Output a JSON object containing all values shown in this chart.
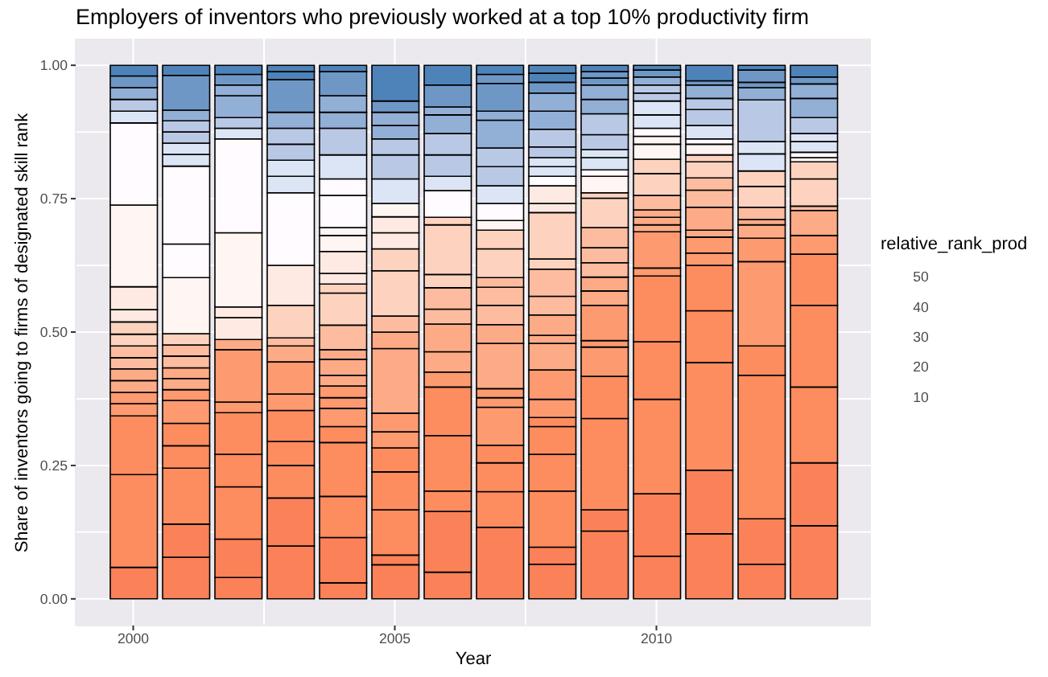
{
  "chart_data": {
    "type": "bar",
    "title": "Employers of inventors who previously worked at a top 10% productivity firm",
    "xlabel": "Year",
    "ylabel": "Share of inventors going to firms of designated skill rank",
    "legend_title": "relative_rank_prod",
    "annotations": [
      "50",
      "40",
      "30",
      "20",
      "10"
    ],
    "stacked": true,
    "grid": true,
    "x": [
      2000,
      2001,
      2002,
      2003,
      2004,
      2005,
      2006,
      2007,
      2008,
      2009,
      2010,
      2011,
      2012,
      2013
    ],
    "xlim": [
      1998.9,
      2014.1
    ],
    "xticks": [
      2000,
      2005,
      2010
    ],
    "ylim": [
      -0.05,
      1.05
    ],
    "yticks": [
      {
        "value": 0,
        "label": "0.00"
      },
      {
        "value": 0.25,
        "label": "0.25"
      },
      {
        "value": 0.5,
        "label": "0.50"
      },
      {
        "value": 0.75,
        "label": "0.75"
      },
      {
        "value": 1,
        "label": "1.00"
      }
    ],
    "series": [
      {
        "values": [
          0.059,
          0.078,
          0.04,
          0.099,
          0.03,
          0.064,
          0.05,
          0.134,
          0.065,
          0.127,
          0.08,
          0.122,
          0.065,
          0.137
        ],
        "colors": [
          "#fb8158",
          "#fb8158",
          "#fb8158",
          "#fb8158",
          "#fb8158",
          "#fb8158",
          "#fb8158",
          "#fb8158",
          "#fb8158",
          "#fb8158",
          "#fb8158",
          "#fb8158",
          "#fb8158",
          "#fb8158"
        ]
      },
      {
        "values": [
          0.174,
          0.062,
          0.072,
          0.09,
          0.085,
          0.018,
          0.114,
          0.067,
          0.032,
          0.04,
          0.117,
          0.119,
          0.085,
          0.118
        ],
        "colors": [
          "#fd8c5f",
          "#fb8158",
          "#fb8158",
          "#fb8158",
          "#fb8158",
          "#fb8158",
          "#fb8158",
          "#fd8c5f",
          "#fb8158",
          "#fb8158",
          "#fb8158",
          "#fb8158",
          "#fb8158",
          "#fb8158"
        ]
      },
      {
        "values": [
          0.11,
          0.105,
          0.098,
          0.061,
          0.077,
          0.085,
          0.038,
          0.054,
          0.105,
          0.171,
          0.177,
          0.202,
          0.269,
          0.142
        ],
        "colors": [
          "#fd8c5f",
          "#fd8c5f",
          "#fd8c5f",
          "#fd8c5f",
          "#fd8c5f",
          "#fd8c5f",
          "#fd8c5f",
          "#fd8c5f",
          "#fd8c5f",
          "#fd8c5f",
          "#fd8c5f",
          "#fd8c5f",
          "#fd8c5f",
          "#fd8c5f"
        ]
      },
      {
        "values": [
          0.023,
          0.042,
          0.061,
          0.045,
          0.101,
          0.071,
          0.104,
          0.033,
          0.069,
          0.079,
          0.108,
          0.097,
          0.055,
          0.153
        ],
        "colors": [
          "#fd9a70",
          "#fd8c5f",
          "#fd8c5f",
          "#fd8c5f",
          "#fd8c5f",
          "#fd8c5f",
          "#fd8c5f",
          "#fd8c5f",
          "#fd8c5f",
          "#fd8c5f",
          "#fd8c5f",
          "#fd8c5f",
          "#fd8c5f",
          "#fd8c5f"
        ]
      },
      {
        "values": [
          0.021,
          0.042,
          0.078,
          0.058,
          0.03,
          0.045,
          0.091,
          0.071,
          0.052,
          0.055,
          0.123,
          0.085,
          0.158,
          0.096
        ],
        "colors": [
          "#fd9a70",
          "#fd8c5f",
          "#fd8c5f",
          "#fd8c5f",
          "#fd8c5f",
          "#fd8c5f",
          "#fd8c5f",
          "#fd9a70",
          "#fd8c5f",
          "#fd9a70",
          "#fd8c5f",
          "#fd8c5f",
          "#fd9a70",
          "#fd8c5f"
        ]
      },
      {
        "values": [
          0.022,
          0.043,
          0.02,
          0.031,
          0.034,
          0.03,
          0.028,
          0.018,
          0.017,
          0.012,
          0.015,
          0.023,
          0.044,
          0.035
        ],
        "colors": [
          "#fdab86",
          "#fd9a70",
          "#fd9a70",
          "#fd9a70",
          "#fd9a70",
          "#fd9a70",
          "#fd9a70",
          "#fd9a70",
          "#fd8c5f",
          "#fd9a70",
          "#fd9a70",
          "#fd9a70",
          "#fd9a70",
          "#fd9a70"
        ]
      },
      {
        "values": [
          0.022,
          0.02,
          0.098,
          0.06,
          0.02,
          0.035,
          0.038,
          0.017,
          0.034,
          0.066,
          0.068,
          0.03,
          0.025,
          0.047
        ],
        "colors": [
          "#fdab86",
          "#fd9a70",
          "#fd9a70",
          "#fd9a70",
          "#fd9a70",
          "#fd9a70",
          "#fdab86",
          "#fd9a70",
          "#fd9a70",
          "#fd9a70",
          "#fd9a70",
          "#fd9a70",
          "#fdab86",
          "#fdab86"
        ]
      },
      {
        "values": [
          0.021,
          0.021,
          0.019,
          0.03,
          0.022,
          0.121,
          0.052,
          0.085,
          0.055,
          0.027,
          0.013,
          0.013,
          0.01,
          0.008
        ],
        "colors": [
          "#fdbc9f",
          "#fdab86",
          "#fdab86",
          "#fdab86",
          "#fd9a70",
          "#fdab86",
          "#fdab86",
          "#fdab86",
          "#fd9a70",
          "#fdab86",
          "#fdab86",
          "#fdab86",
          "#fdab86",
          "#fdbc9f"
        ]
      },
      {
        "values": [
          0.022,
          0.02,
          0.041,
          0.015,
          0.02,
          0.031,
          0.028,
          0.035,
          0.05,
          0.026,
          0.014,
          0.043,
          0.023,
          0.051
        ],
        "colors": [
          "#fdbc9f",
          "#fdab86",
          "#feeae2",
          "#fdbc9f",
          "#fdab86",
          "#fdab86",
          "#fdbc9f",
          "#fdab86",
          "#fdab86",
          "#fdab86",
          "#fdab86",
          "#fdab86",
          "#fdbc9f",
          "#fdd3bf"
        ]
      },
      {
        "values": [
          0.022,
          0.022,
          0.02,
          0.061,
          0.03,
          0.03,
          0.04,
          0.036,
          0.015,
          0.027,
          0.014,
          0.032,
          0.039,
          0.032
        ],
        "colors": [
          "#fdd3bf",
          "#fdbc9f",
          "#feeae2",
          "#fdd3bf",
          "#fdab86",
          "#fdbc9f",
          "#fdbc9f",
          "#fdbc9f",
          "#fdab86",
          "#fdbc9f",
          "#fdab86",
          "#fdbc9f",
          "#fdd3bf",
          "#fdd3bf"
        ]
      },
      {
        "values": [
          0.023,
          0.021,
          0.139,
          0.075,
          0.018,
          0.085,
          0.025,
          0.034,
          0.038,
          0.028,
          0.027,
          0.023,
          0.029,
          0.008
        ],
        "colors": [
          "#fdd3bf",
          "#fdbc9f",
          "#fff5f2",
          "#feeae2",
          "#fdab86",
          "#fdd3bf",
          "#fdd3bf",
          "#fdbc9f",
          "#fdab86",
          "#fdbc9f",
          "#fdbc9f",
          "#fdbc9f",
          "#fdd3bf",
          "#fff5f2"
        ]
      },
      {
        "values": [
          0.023,
          0.021,
          0.176,
          0.136,
          0.046,
          0.041,
          0.093,
          0.018,
          0.035,
          0.038,
          0.041,
          0.03,
          0.032,
          0.01
        ],
        "colors": [
          "#feeae2",
          "#fdd3bf",
          "#fffbff",
          "#fffbff",
          "#fdbc9f",
          "#fdd3bf",
          "#fdd3bf",
          "#fdbc9f",
          "#fdbc9f",
          "#fdbc9f",
          "#fdd3bf",
          "#fdd3bf",
          "#dbe5f5",
          "#fffbff"
        ]
      },
      {
        "values": [
          0.043,
          0.105,
          0.02,
          0.031,
          0.06,
          0.03,
          0.014,
          0.054,
          0.051,
          0.055,
          0.027,
          0.013,
          0.023,
          0.02
        ],
        "colors": [
          "#feeae2",
          "#fff5f2",
          "#dbe5f5",
          "#dbe5f5",
          "#fdd3bf",
          "#feeae2",
          "#fdd3bf",
          "#fdd3bf",
          "#fdbc9f",
          "#fdd3bf",
          "#fdd3bf",
          "#fdd3bf",
          "#dbe5f5",
          "#dbe5f5"
        ]
      },
      {
        "values": [
          0.153,
          0.063,
          0.02,
          0.03,
          0.017,
          0.03,
          0.05,
          0.035,
          0.019,
          0.01,
          0.028,
          0.02,
          0.078,
          0.015
        ],
        "colors": [
          "#fff5f2",
          "#fffbff",
          "#b9c9e5",
          "#dbe5f5",
          "#fdd3bf",
          "#feeae2",
          "#fffbff",
          "#fdd3bf",
          "#fdd3bf",
          "#fdd3bf",
          "#fff5f2",
          "#fff5f2",
          "#b9c9e5",
          "#dbe5f5"
        ]
      },
      {
        "values": [
          0.154,
          0.146,
          0.041,
          0.03,
          0.02,
          0.025,
          0.027,
          0.018,
          0.087,
          0.031,
          0.015,
          0.01,
          0.023,
          0.03
        ],
        "colors": [
          "#fffbff",
          "#fffbff",
          "#92afd6",
          "#b9c9e5",
          "#feeae2",
          "#fff5f2",
          "#dbe5f5",
          "#fff5f2",
          "#fdd3bf",
          "#fff5f2",
          "#fff5f2",
          "#fffbff",
          "#92afd6",
          "#b9c9e5"
        ]
      },
      {
        "values": [
          0.022,
          0.022,
          0.02,
          0.03,
          0.041,
          0.046,
          0.04,
          0.032,
          0.017,
          0.012,
          0.015,
          0.025,
          0.01,
          0.036
        ],
        "colors": [
          "#dbe5f5",
          "#dbe5f5",
          "#92afd6",
          "#b9c9e5",
          "#feeae2",
          "#dbe5f5",
          "#b9c9e5",
          "#fffbff",
          "#feeae2",
          "#fffbff",
          "#fffbff",
          "#dbe5f5",
          "#6f97c6",
          "#92afd6"
        ]
      },
      {
        "values": [
          0.022,
          0.021,
          0.02,
          0.03,
          0.03,
          0.045,
          0.04,
          0.033,
          0.033,
          0.023,
          0.025,
          0.03,
          0.023,
          0.027
        ],
        "colors": [
          "#b9c9e5",
          "#dbe5f5",
          "#6f97c6",
          "#92afd6",
          "#fff5f2",
          "#b9c9e5",
          "#b9c9e5",
          "#dbe5f5",
          "#feeae2",
          "#dbe5f5",
          "#dbe5f5",
          "#b9c9e5",
          "#6f97c6",
          "#92afd6"
        ]
      },
      {
        "values": [
          0.022,
          0.021,
          0.017,
          0.061,
          0.015,
          0.03,
          0.035,
          0.036,
          0.018,
          0.015,
          0.026,
          0.021,
          0.009,
          0.013
        ],
        "colors": [
          "#92afd6",
          "#b9c9e5",
          "#4d83b9",
          "#6f97c6",
          "#fff5f2",
          "#b9c9e5",
          "#92afd6",
          "#b9c9e5",
          "#fffbff",
          "#dbe5f5",
          "#dbe5f5",
          "#b9c9e5",
          "#4d83b9",
          "#6f97c6"
        ]
      },
      {
        "values": [
          0.022,
          0.021,
          null,
          0.015,
          0.06,
          0.025,
          0.015,
          0.035,
          0.018,
          0.028,
          0.015,
          0.025,
          null,
          0.022
        ],
        "colors": [
          "#6f97c6",
          "#b9c9e5",
          null,
          "#4d83b9",
          "#fffbff",
          "#92afd6",
          "#92afd6",
          "#b9c9e5",
          "#dbe5f5",
          "#b9c9e5",
          "#b9c9e5",
          "#92afd6",
          null,
          "#4d83b9"
        ]
      },
      {
        "values": [
          0.02,
          0.02,
          null,
          0.012,
          0.031,
          0.025,
          0.041,
          0.052,
          0.017,
          0.039,
          0.015,
          0.008,
          null,
          null
        ],
        "colors": [
          "#4d83b9",
          "#92afd6",
          null,
          "#4d83b9",
          "#fffbff",
          "#92afd6",
          "#6f97c6",
          "#92afd6",
          "#dbe5f5",
          "#b9c9e5",
          "#b9c9e5",
          "#6f97c6",
          null,
          null
        ]
      },
      {
        "values": [
          null,
          0.065,
          null,
          null,
          0.045,
          0.021,
          0.037,
          0.017,
          0.02,
          0.027,
          0.015,
          0.029,
          null,
          null
        ],
        "colors": [
          null,
          "#6f97c6",
          null,
          null,
          "#dbe5f5",
          "#6f97c6",
          "#4d83b9",
          "#92afd6",
          "#b9c9e5",
          "#92afd6",
          "#92afd6",
          "#4d83b9",
          null,
          null
        ]
      },
      {
        "values": [
          null,
          0.019,
          null,
          null,
          0.05,
          0.067,
          null,
          0.052,
          0.033,
          0.027,
          0.013,
          null,
          null,
          null
        ],
        "colors": [
          null,
          "#4d83b9",
          null,
          null,
          "#b9c9e5",
          "#4d83b9",
          null,
          "#6f97c6",
          "#b9c9e5",
          "#92afd6",
          "#6f97c6",
          null,
          null,
          null
        ]
      },
      {
        "values": [
          null,
          null,
          null,
          null,
          0.03,
          null,
          null,
          0.017,
          0.034,
          0.013,
          0.009,
          null,
          null,
          null
        ],
        "colors": [
          null,
          null,
          null,
          null,
          "#92afd6",
          null,
          null,
          "#6f97c6",
          "#92afd6",
          "#6f97c6",
          "#4d83b9",
          null,
          null,
          null
        ]
      },
      {
        "values": [
          null,
          null,
          null,
          null,
          0.031,
          null,
          null,
          0.017,
          0.034,
          0.012,
          null,
          null,
          null,
          null
        ],
        "colors": [
          null,
          null,
          null,
          null,
          "#92afd6",
          null,
          null,
          "#4d83b9",
          "#92afd6",
          "#6f97c6",
          null,
          null,
          null,
          null
        ]
      },
      {
        "values": [
          null,
          null,
          null,
          null,
          0.045,
          null,
          null,
          null,
          0.02,
          0.012,
          null,
          null,
          null,
          null
        ],
        "colors": [
          null,
          null,
          null,
          null,
          "#6f97c6",
          null,
          null,
          null,
          "#6f97c6",
          "#4d83b9",
          null,
          null,
          null,
          null
        ]
      },
      {
        "values": [
          null,
          null,
          null,
          null,
          0.012,
          null,
          null,
          null,
          0.017,
          null,
          null,
          null,
          null,
          null
        ],
        "colors": [
          null,
          null,
          null,
          null,
          "#4d83b9",
          null,
          null,
          null,
          "#4d83b9",
          null,
          null,
          null,
          null,
          null
        ]
      },
      {
        "values": [
          null,
          null,
          null,
          null,
          null,
          null,
          null,
          null,
          0.015,
          null,
          null,
          null,
          null,
          null
        ],
        "colors": [
          null,
          null,
          null,
          null,
          null,
          null,
          null,
          null,
          "#4d83b9",
          null,
          null,
          null,
          null,
          null
        ]
      }
    ]
  }
}
